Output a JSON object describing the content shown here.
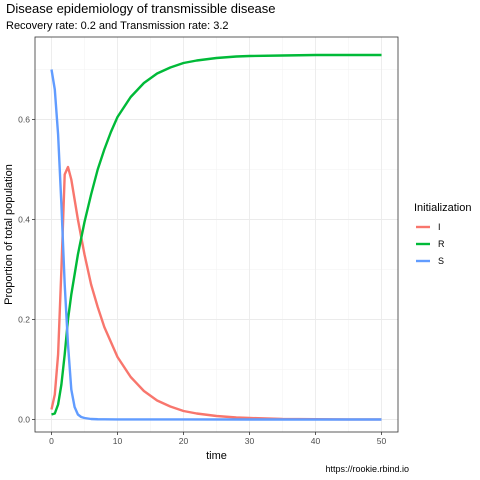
{
  "chart_data": {
    "type": "line",
    "title": "Disease epidemiology of transmissible disease",
    "subtitle": "Recovery rate: 0.2 and Transmission rate: 3.2",
    "caption": "https://rookie.rbind.io",
    "xlabel": "time",
    "ylabel": "Proportion of total population",
    "xlim": [
      -2.5,
      52.5
    ],
    "ylim": [
      -0.025,
      0.765
    ],
    "x_ticks": [
      0,
      10,
      20,
      30,
      40,
      50
    ],
    "y_ticks": [
      0.0,
      0.2,
      0.4,
      0.6
    ],
    "grid": true,
    "legend": {
      "title": "Initialization",
      "position": "right"
    },
    "series": [
      {
        "name": "I",
        "color": "#F8766D",
        "x": [
          0,
          0.5,
          1,
          1.5,
          2,
          2.5,
          3,
          3.5,
          4,
          5,
          6,
          7,
          8,
          10,
          12,
          14,
          16,
          18,
          20,
          22,
          25,
          28,
          30,
          35,
          40,
          45,
          50
        ],
        "y": [
          0.02,
          0.05,
          0.13,
          0.3,
          0.49,
          0.505,
          0.48,
          0.44,
          0.4,
          0.33,
          0.27,
          0.225,
          0.185,
          0.125,
          0.085,
          0.057,
          0.038,
          0.026,
          0.017,
          0.012,
          0.007,
          0.004,
          0.003,
          0.001,
          0.0005,
          0.0002,
          0.0001
        ]
      },
      {
        "name": "R",
        "color": "#00BA38",
        "x": [
          0,
          0.5,
          1,
          1.5,
          2,
          2.5,
          3,
          4,
          5,
          6,
          7,
          8,
          9,
          10,
          12,
          14,
          16,
          18,
          20,
          22,
          25,
          28,
          30,
          35,
          40,
          45,
          50
        ],
        "y": [
          0.01,
          0.012,
          0.03,
          0.07,
          0.13,
          0.2,
          0.25,
          0.33,
          0.395,
          0.45,
          0.5,
          0.54,
          0.575,
          0.605,
          0.645,
          0.673,
          0.692,
          0.704,
          0.713,
          0.718,
          0.723,
          0.726,
          0.727,
          0.728,
          0.729,
          0.729,
          0.729
        ]
      },
      {
        "name": "S",
        "color": "#619CFF",
        "x": [
          0,
          0.5,
          1,
          1.5,
          2,
          2.5,
          3,
          3.5,
          4,
          4.5,
          5,
          6,
          7,
          8,
          10,
          20,
          30,
          40,
          50
        ],
        "y": [
          0.7,
          0.66,
          0.57,
          0.43,
          0.27,
          0.15,
          0.06,
          0.025,
          0.01,
          0.005,
          0.003,
          0.001,
          0.0005,
          0.0003,
          0.0002,
          0.0001,
          0.0,
          0.0,
          0.0
        ]
      }
    ]
  }
}
